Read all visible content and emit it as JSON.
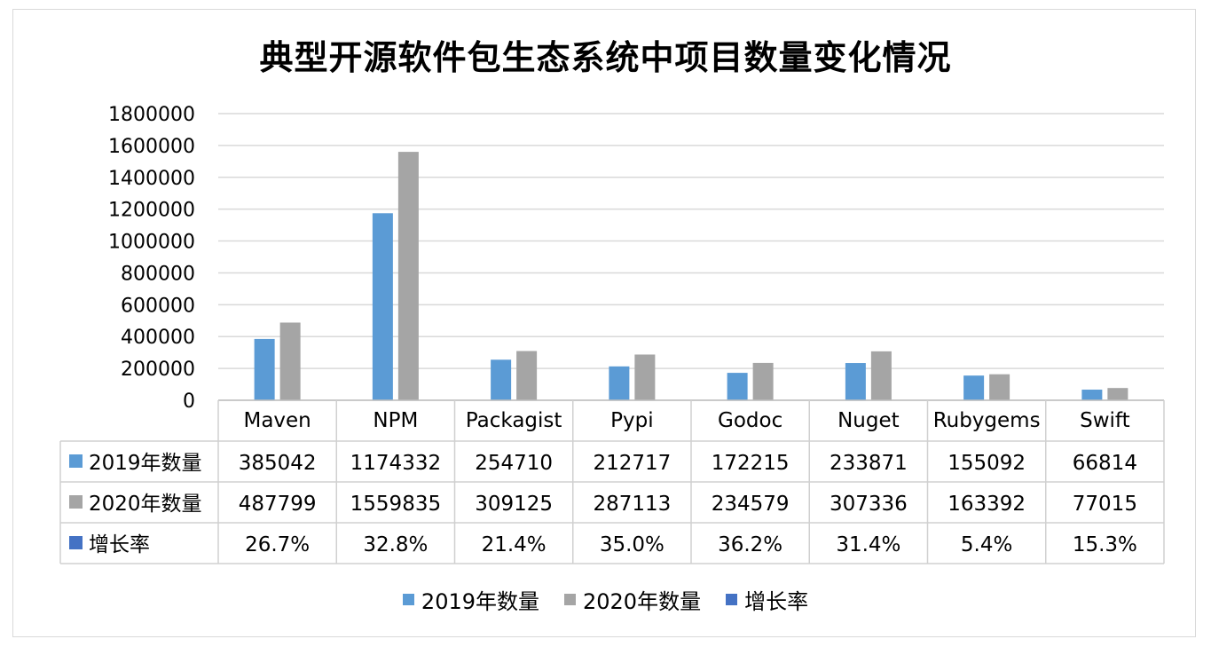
{
  "chart_data": {
    "type": "bar",
    "title": "典型开源软件包生态系统中项目数量变化情况",
    "categories": [
      "Maven",
      "NPM",
      "Packagist",
      "Pypi",
      "Godoc",
      "Nuget",
      "Rubygems",
      "Swift"
    ],
    "series": [
      {
        "name": "2019年数量",
        "color": "#5b9bd5",
        "values": [
          385042,
          1174332,
          254710,
          212717,
          172215,
          233871,
          155092,
          66814
        ],
        "labels": [
          "385042",
          "1174332",
          "254710",
          "212717",
          "172215",
          "233871",
          "155092",
          "66814"
        ]
      },
      {
        "name": "2020年数量",
        "color": "#a5a5a5",
        "values": [
          487799,
          1559835,
          309125,
          287113,
          234579,
          307336,
          163392,
          77015
        ],
        "labels": [
          "487799",
          "1559835",
          "309125",
          "287113",
          "234579",
          "307336",
          "163392",
          "77015"
        ]
      },
      {
        "name": "增长率",
        "color": "#4472c4",
        "values": [
          26.7,
          32.8,
          21.4,
          35.0,
          36.2,
          31.4,
          5.4,
          15.3
        ],
        "labels": [
          "26.7%",
          "32.8%",
          "21.4%",
          "35.0%",
          "36.2%",
          "31.4%",
          "5.4%",
          "15.3%"
        ]
      }
    ],
    "ylim": [
      0,
      1800000
    ],
    "yticks": [
      "0",
      "200000",
      "400000",
      "600000",
      "800000",
      "1000000",
      "1200000",
      "1400000",
      "1600000",
      "1800000"
    ],
    "grid": true,
    "legend": "bottom",
    "data_table": true
  }
}
